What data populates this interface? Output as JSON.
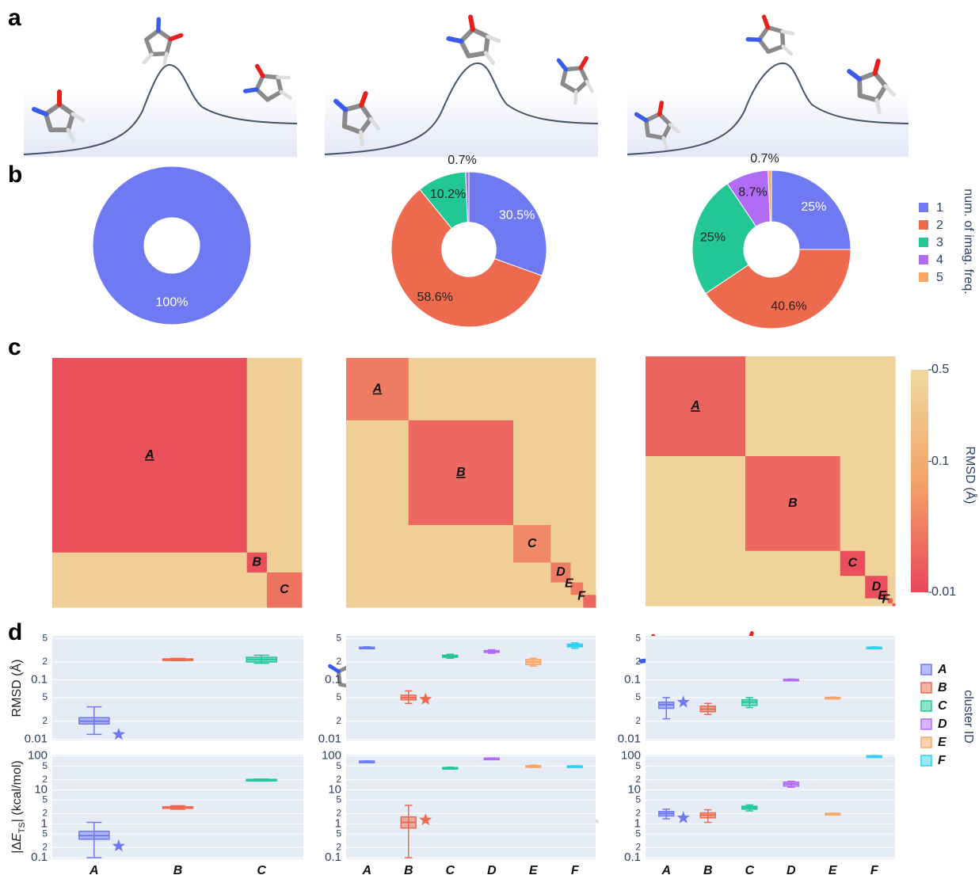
{
  "panel_labels": [
    "a",
    "b",
    "c",
    "d"
  ],
  "pie_legend": {
    "title": "num. of imag. freq.",
    "items": [
      {
        "name": "1",
        "color": "#6f79f2"
      },
      {
        "name": "2",
        "color": "#ee6a4e"
      },
      {
        "name": "3",
        "color": "#22c795"
      },
      {
        "name": "4",
        "color": "#b06cf5"
      },
      {
        "name": "5",
        "color": "#f8a765"
      }
    ]
  },
  "colorbar": {
    "title": "RMSD (Å)",
    "lim": [
      0.01,
      0.5
    ],
    "ticks": [
      0.5,
      0.1,
      0.01
    ],
    "colors": [
      "#e8475a",
      "#f3a46a",
      "#efd9a0"
    ]
  },
  "cluster_legend": {
    "title": "cluster ID",
    "items": [
      {
        "name": "A",
        "color": "#6f79f2"
      },
      {
        "name": "B",
        "color": "#ee6a4e"
      },
      {
        "name": "C",
        "color": "#22c795"
      },
      {
        "name": "D",
        "color": "#b06cf5"
      },
      {
        "name": "E",
        "color": "#f8a765"
      },
      {
        "name": "F",
        "color": "#2fd3f0"
      }
    ]
  },
  "chart_data": [
    {
      "type": "pie",
      "values": [
        100
      ],
      "value_labels": [
        "100%"
      ],
      "colors": [
        "#6f79f2"
      ]
    },
    {
      "type": "pie",
      "values": [
        30.5,
        58.6,
        10.2,
        0.7
      ],
      "value_labels": [
        "30.5%",
        "58.6%",
        "10.2%",
        "0.7%"
      ],
      "colors": [
        "#6f79f2",
        "#ee6a4e",
        "#22c795",
        "#b06cf5"
      ]
    },
    {
      "type": "pie",
      "values": [
        25,
        40.6,
        25,
        8.7,
        0.7
      ],
      "value_labels": [
        "25%",
        "40.6%",
        "25%",
        "8.7%",
        "0.7%"
      ],
      "colors": [
        "#6f79f2",
        "#ee6a4e",
        "#22c795",
        "#b06cf5",
        "#f8a765"
      ]
    },
    {
      "type": "heatmap",
      "clusters": [
        "A",
        "B",
        "C"
      ],
      "sizes": [
        78,
        8,
        14
      ],
      "within_rmsd": [
        0.012,
        0.012,
        0.025
      ],
      "between_rmsd": 0.35,
      "underlined": [
        true,
        false,
        false
      ]
    },
    {
      "type": "heatmap",
      "clusters": [
        "A",
        "B",
        "C",
        "D",
        "E",
        "F"
      ],
      "sizes": [
        25,
        42,
        15,
        8,
        5,
        5
      ],
      "within_rmsd": [
        0.03,
        0.02,
        0.04,
        0.03,
        0.03,
        0.02
      ],
      "between_rmsd": 0.35,
      "underlined": [
        true,
        true,
        false,
        false,
        false,
        false
      ]
    },
    {
      "type": "heatmap",
      "clusters": [
        "A",
        "B",
        "C",
        "D",
        "E",
        "F"
      ],
      "sizes": [
        40,
        38,
        10,
        9,
        2,
        1
      ],
      "within_rmsd": [
        0.018,
        0.02,
        0.012,
        0.012,
        0.015,
        0.012
      ],
      "between_rmsd": 0.4,
      "underlined": [
        true,
        false,
        false,
        false,
        false,
        false
      ]
    },
    {
      "type": "box",
      "ylabel": "RMSD (Å)",
      "ylim": [
        0.0095,
        0.55
      ],
      "yticks": [
        0.01,
        {
          "value": 0.02,
          "label": "2"
        },
        {
          "value": 0.05,
          "label": "5"
        },
        0.1,
        {
          "value": 0.2,
          "label": "2"
        },
        {
          "value": 0.5,
          "label": "5"
        }
      ],
      "colors": [
        "#6f79f2",
        "#ee6a4e",
        "#22c795"
      ],
      "values": [
        [
          0.012,
          0.018,
          0.02,
          0.023,
          0.035
        ],
        [
          0.21,
          0.215,
          0.22,
          0.225,
          0.23
        ],
        [
          0.19,
          0.2,
          0.22,
          0.24,
          0.26
        ]
      ],
      "stars": [
        0.012,
        null,
        null
      ]
    },
    {
      "type": "box",
      "ylim": [
        0.0095,
        0.55
      ],
      "yticks": [
        0.01,
        {
          "value": 0.02,
          "label": "2"
        },
        {
          "value": 0.05,
          "label": "5"
        },
        0.1,
        {
          "value": 0.2,
          "label": "2"
        },
        {
          "value": 0.5,
          "label": "5"
        }
      ],
      "colors": [
        "#6f79f2",
        "#ee6a4e",
        "#22c795",
        "#b06cf5",
        "#f8a765",
        "#2fd3f0"
      ],
      "values": [
        [
          0.34,
          0.345,
          0.35,
          0.355,
          0.36
        ],
        [
          0.04,
          0.046,
          0.05,
          0.055,
          0.065
        ],
        [
          0.23,
          0.24,
          0.25,
          0.26,
          0.27
        ],
        [
          0.28,
          0.29,
          0.3,
          0.31,
          0.32
        ],
        [
          0.17,
          0.18,
          0.2,
          0.22,
          0.23
        ],
        [
          0.34,
          0.36,
          0.38,
          0.4,
          0.42
        ]
      ],
      "stars": [
        null,
        0.047,
        null,
        null,
        null,
        null
      ]
    },
    {
      "type": "box",
      "ylim": [
        0.0095,
        0.55
      ],
      "yticks": [
        0.01,
        {
          "value": 0.02,
          "label": "2"
        },
        {
          "value": 0.05,
          "label": "5"
        },
        0.1,
        {
          "value": 0.2,
          "label": "2"
        },
        {
          "value": 0.5,
          "label": "5"
        }
      ],
      "colors": [
        "#6f79f2",
        "#ee6a4e",
        "#22c795",
        "#b06cf5",
        "#f8a765",
        "#2fd3f0"
      ],
      "values": [
        [
          0.022,
          0.033,
          0.038,
          0.042,
          0.05
        ],
        [
          0.026,
          0.029,
          0.032,
          0.036,
          0.04
        ],
        [
          0.034,
          0.037,
          0.042,
          0.046,
          0.05
        ],
        [
          0.098,
          0.099,
          0.1,
          0.102,
          0.103
        ],
        [
          0.049,
          0.0495,
          0.05,
          0.0505,
          0.051
        ],
        [
          0.34,
          0.345,
          0.35,
          0.355,
          0.36
        ]
      ],
      "stars": [
        0.042,
        null,
        null,
        null,
        null,
        null
      ]
    },
    {
      "type": "box",
      "ylabel_parts": [
        "|Δ",
        "E",
        "TS",
        "| (kcal/mol)"
      ],
      "ylim": [
        0.09,
        110
      ],
      "yticks": [
        0.1,
        {
          "value": 0.2,
          "label": "2"
        },
        {
          "value": 0.5,
          "label": "5"
        },
        1,
        {
          "value": 2,
          "label": "2"
        },
        {
          "value": 5,
          "label": "5"
        },
        10,
        {
          "value": 20,
          "label": "2"
        },
        {
          "value": 50,
          "label": "5"
        },
        100
      ],
      "categories": [
        "A",
        "B",
        "C"
      ],
      "colors": [
        "#6f79f2",
        "#ee6a4e",
        "#22c795"
      ],
      "values": [
        [
          0.1,
          0.35,
          0.45,
          0.6,
          1.1
        ],
        [
          2.7,
          2.85,
          3,
          3.2,
          3.4
        ],
        [
          19,
          19.5,
          20,
          20.5,
          21
        ]
      ],
      "stars": [
        0.22,
        null,
        null
      ]
    },
    {
      "type": "box",
      "ylim": [
        0.09,
        110
      ],
      "yticks": [
        0.1,
        {
          "value": 0.2,
          "label": "2"
        },
        {
          "value": 0.5,
          "label": "5"
        },
        1,
        {
          "value": 2,
          "label": "2"
        },
        {
          "value": 5,
          "label": "5"
        },
        10,
        {
          "value": 20,
          "label": "2"
        },
        {
          "value": 50,
          "label": "5"
        },
        100
      ],
      "categories": [
        "A",
        "B",
        "C",
        "D",
        "E",
        "F"
      ],
      "colors": [
        "#6f79f2",
        "#ee6a4e",
        "#22c795",
        "#b06cf5",
        "#f8a765",
        "#2fd3f0"
      ],
      "values": [
        [
          68,
          69,
          70,
          71,
          72
        ],
        [
          0.1,
          0.75,
          1.1,
          1.6,
          3.5
        ],
        [
          43,
          44,
          45,
          46,
          47
        ],
        [
          82,
          84,
          85,
          87,
          88
        ],
        [
          46,
          48,
          50,
          52,
          54
        ],
        [
          48,
          49,
          50,
          51,
          52
        ]
      ],
      "stars": [
        null,
        1.3,
        null,
        null,
        null,
        null
      ]
    },
    {
      "type": "box",
      "ylim": [
        0.09,
        110
      ],
      "yticks": [
        0.1,
        {
          "value": 0.2,
          "label": "2"
        },
        {
          "value": 0.5,
          "label": "5"
        },
        1,
        {
          "value": 2,
          "label": "2"
        },
        {
          "value": 5,
          "label": "5"
        },
        10,
        {
          "value": 20,
          "label": "2"
        },
        {
          "value": 50,
          "label": "5"
        },
        100
      ],
      "categories": [
        "A",
        "B",
        "C",
        "D",
        "E",
        "F"
      ],
      "colors": [
        "#6f79f2",
        "#ee6a4e",
        "#22c795",
        "#b06cf5",
        "#f8a765",
        "#2fd3f0"
      ],
      "values": [
        [
          1.4,
          1.7,
          2,
          2.3,
          2.7
        ],
        [
          1.1,
          1.5,
          1.8,
          2.1,
          2.6
        ],
        [
          2.4,
          2.7,
          3,
          3.3,
          3.6
        ],
        [
          12,
          13,
          15,
          17,
          18
        ],
        [
          1.95,
          1.98,
          2,
          2.02,
          2.05
        ],
        [
          97,
          99,
          100,
          101,
          103
        ]
      ],
      "stars": [
        1.5,
        null,
        null,
        null,
        null,
        null
      ]
    }
  ]
}
